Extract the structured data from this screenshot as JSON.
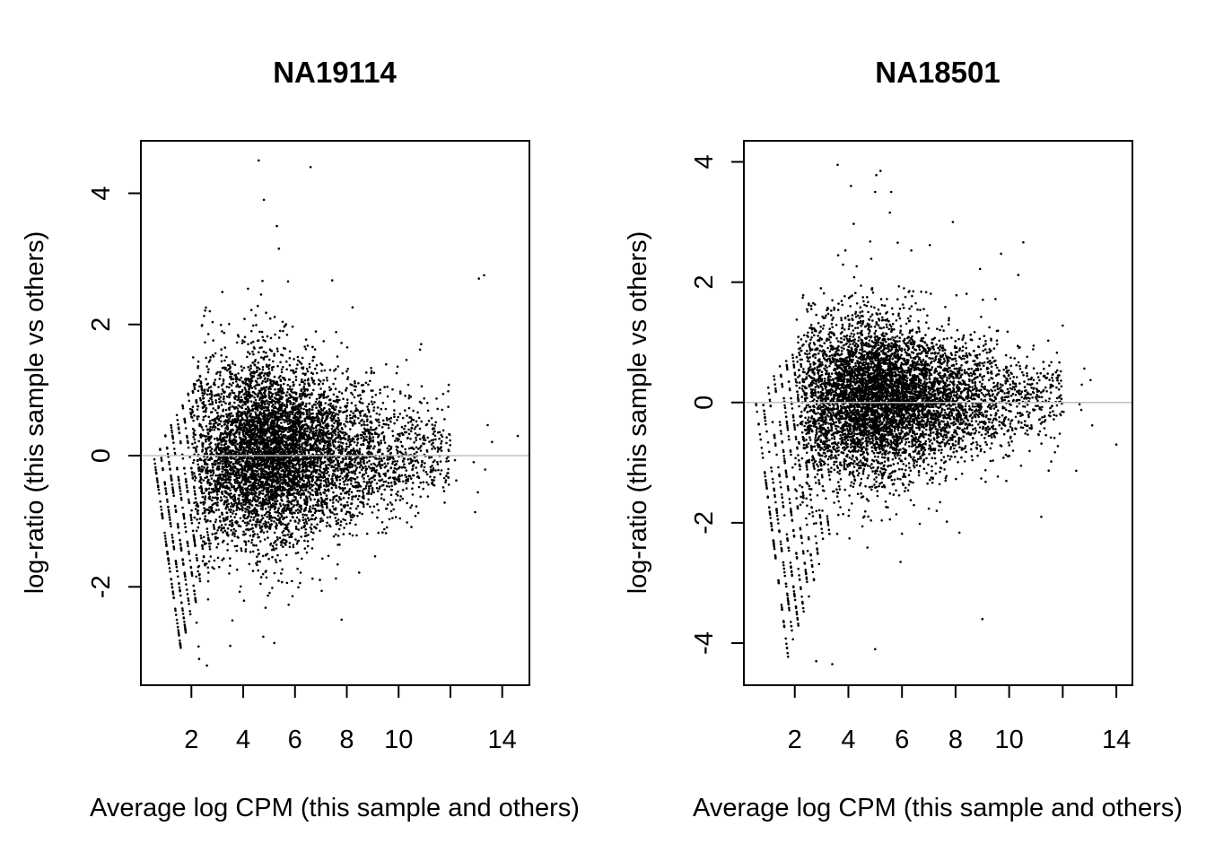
{
  "chart_data": [
    {
      "type": "scatter",
      "title": "NA19114",
      "xlabel": "Average log CPM (this sample and others)",
      "ylabel": "log-ratio (this sample vs others)",
      "xlim": [
        0.05,
        15.05
      ],
      "ylim": [
        -3.5,
        4.8
      ],
      "xticks": [
        2,
        4,
        6,
        8,
        10,
        12,
        14
      ],
      "xtick_labels": [
        "2",
        "4",
        "6",
        "8",
        "10",
        "",
        "14"
      ],
      "yticks": [
        -2,
        0,
        2,
        4
      ],
      "ytick_labels": [
        "-2",
        "0",
        "2",
        "4"
      ],
      "reference_line": {
        "y": 0,
        "color": "#bfbfbf"
      },
      "grid": false,
      "point_color": "#000000",
      "approx_point_count": 9000,
      "cloud": {
        "x_range": [
          0.55,
          14.7
        ],
        "y_center": 0.05,
        "y_spread_sd": 0.65,
        "y_min": -3.2,
        "y_max": 4.5,
        "low_count_band_slope": -1.0
      },
      "outliers": [
        {
          "x": 4.6,
          "y": 4.5
        },
        {
          "x": 6.6,
          "y": 4.4
        },
        {
          "x": 4.8,
          "y": 3.9
        },
        {
          "x": 5.3,
          "y": 3.5
        },
        {
          "x": 13.3,
          "y": 2.75
        },
        {
          "x": 13.1,
          "y": 2.7
        },
        {
          "x": 14.6,
          "y": 0.3
        },
        {
          "x": 2.3,
          "y": -3.1
        },
        {
          "x": 2.6,
          "y": -3.2
        },
        {
          "x": 3.5,
          "y": -2.9
        },
        {
          "x": 7.8,
          "y": -2.5
        },
        {
          "x": 12.9,
          "y": -0.1
        }
      ]
    },
    {
      "type": "scatter",
      "title": "NA18501",
      "xlabel": "Average log CPM (this sample and others)",
      "ylabel": "log-ratio (this sample vs others)",
      "xlim": [
        0.1,
        14.6
      ],
      "ylim": [
        -4.7,
        4.35
      ],
      "xticks": [
        2,
        4,
        6,
        8,
        10,
        12,
        14
      ],
      "xtick_labels": [
        "2",
        "4",
        "6",
        "8",
        "10",
        "",
        "14"
      ],
      "yticks": [
        -4,
        -2,
        0,
        2,
        4
      ],
      "ytick_labels": [
        "-4",
        "-2",
        "0",
        "2",
        "4"
      ],
      "reference_line": {
        "y": 0,
        "color": "#bfbfbf"
      },
      "grid": false,
      "point_color": "#000000",
      "approx_point_count": 9000,
      "cloud": {
        "x_range": [
          0.55,
          14.1
        ],
        "y_center": 0.05,
        "y_spread_sd": 0.6,
        "y_min": -4.35,
        "y_max": 4.0,
        "low_count_band_slope": -1.0
      },
      "outliers": [
        {
          "x": 3.6,
          "y": 3.95
        },
        {
          "x": 5.2,
          "y": 3.85
        },
        {
          "x": 4.1,
          "y": 3.6
        },
        {
          "x": 5.0,
          "y": 3.5
        },
        {
          "x": 5.6,
          "y": 3.5
        },
        {
          "x": 7.9,
          "y": 3.0
        },
        {
          "x": 14.0,
          "y": -0.7
        },
        {
          "x": 2.8,
          "y": -4.3
        },
        {
          "x": 3.4,
          "y": -4.35
        },
        {
          "x": 5.0,
          "y": -4.1
        },
        {
          "x": 9.0,
          "y": -3.6
        },
        {
          "x": 11.2,
          "y": -1.9
        }
      ]
    }
  ]
}
